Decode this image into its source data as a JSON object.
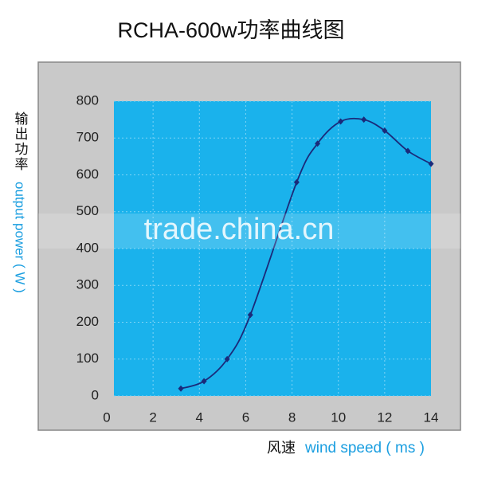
{
  "chart_data": {
    "type": "line",
    "title": "RCHA-600w功率曲线图",
    "y_label_cn": "输出功率",
    "y_label_en": "output power ( W )",
    "x_label_cn": "风速",
    "x_label_en": "wind speed ( ms )",
    "watermark": "trade.china.cn",
    "x": [
      3.2,
      4.2,
      5.2,
      6.2,
      8.2,
      9.1,
      10.1,
      11.1,
      12,
      13,
      14
    ],
    "series": [
      {
        "name": "power",
        "color": "#1a2a7a",
        "values": [
          20,
          40,
          100,
          220,
          580,
          685,
          745,
          750,
          720,
          665,
          630
        ]
      }
    ],
    "xlim": [
      0,
      14
    ],
    "xticks": [
      0,
      2,
      4,
      6,
      8,
      10,
      12,
      14
    ],
    "ylim": [
      0,
      800
    ],
    "yticks": [
      0,
      100,
      200,
      300,
      400,
      500,
      600,
      700,
      800
    ],
    "grid": true,
    "plot_color": "#1ab2ec",
    "panel_color": "#c9c9c9"
  }
}
